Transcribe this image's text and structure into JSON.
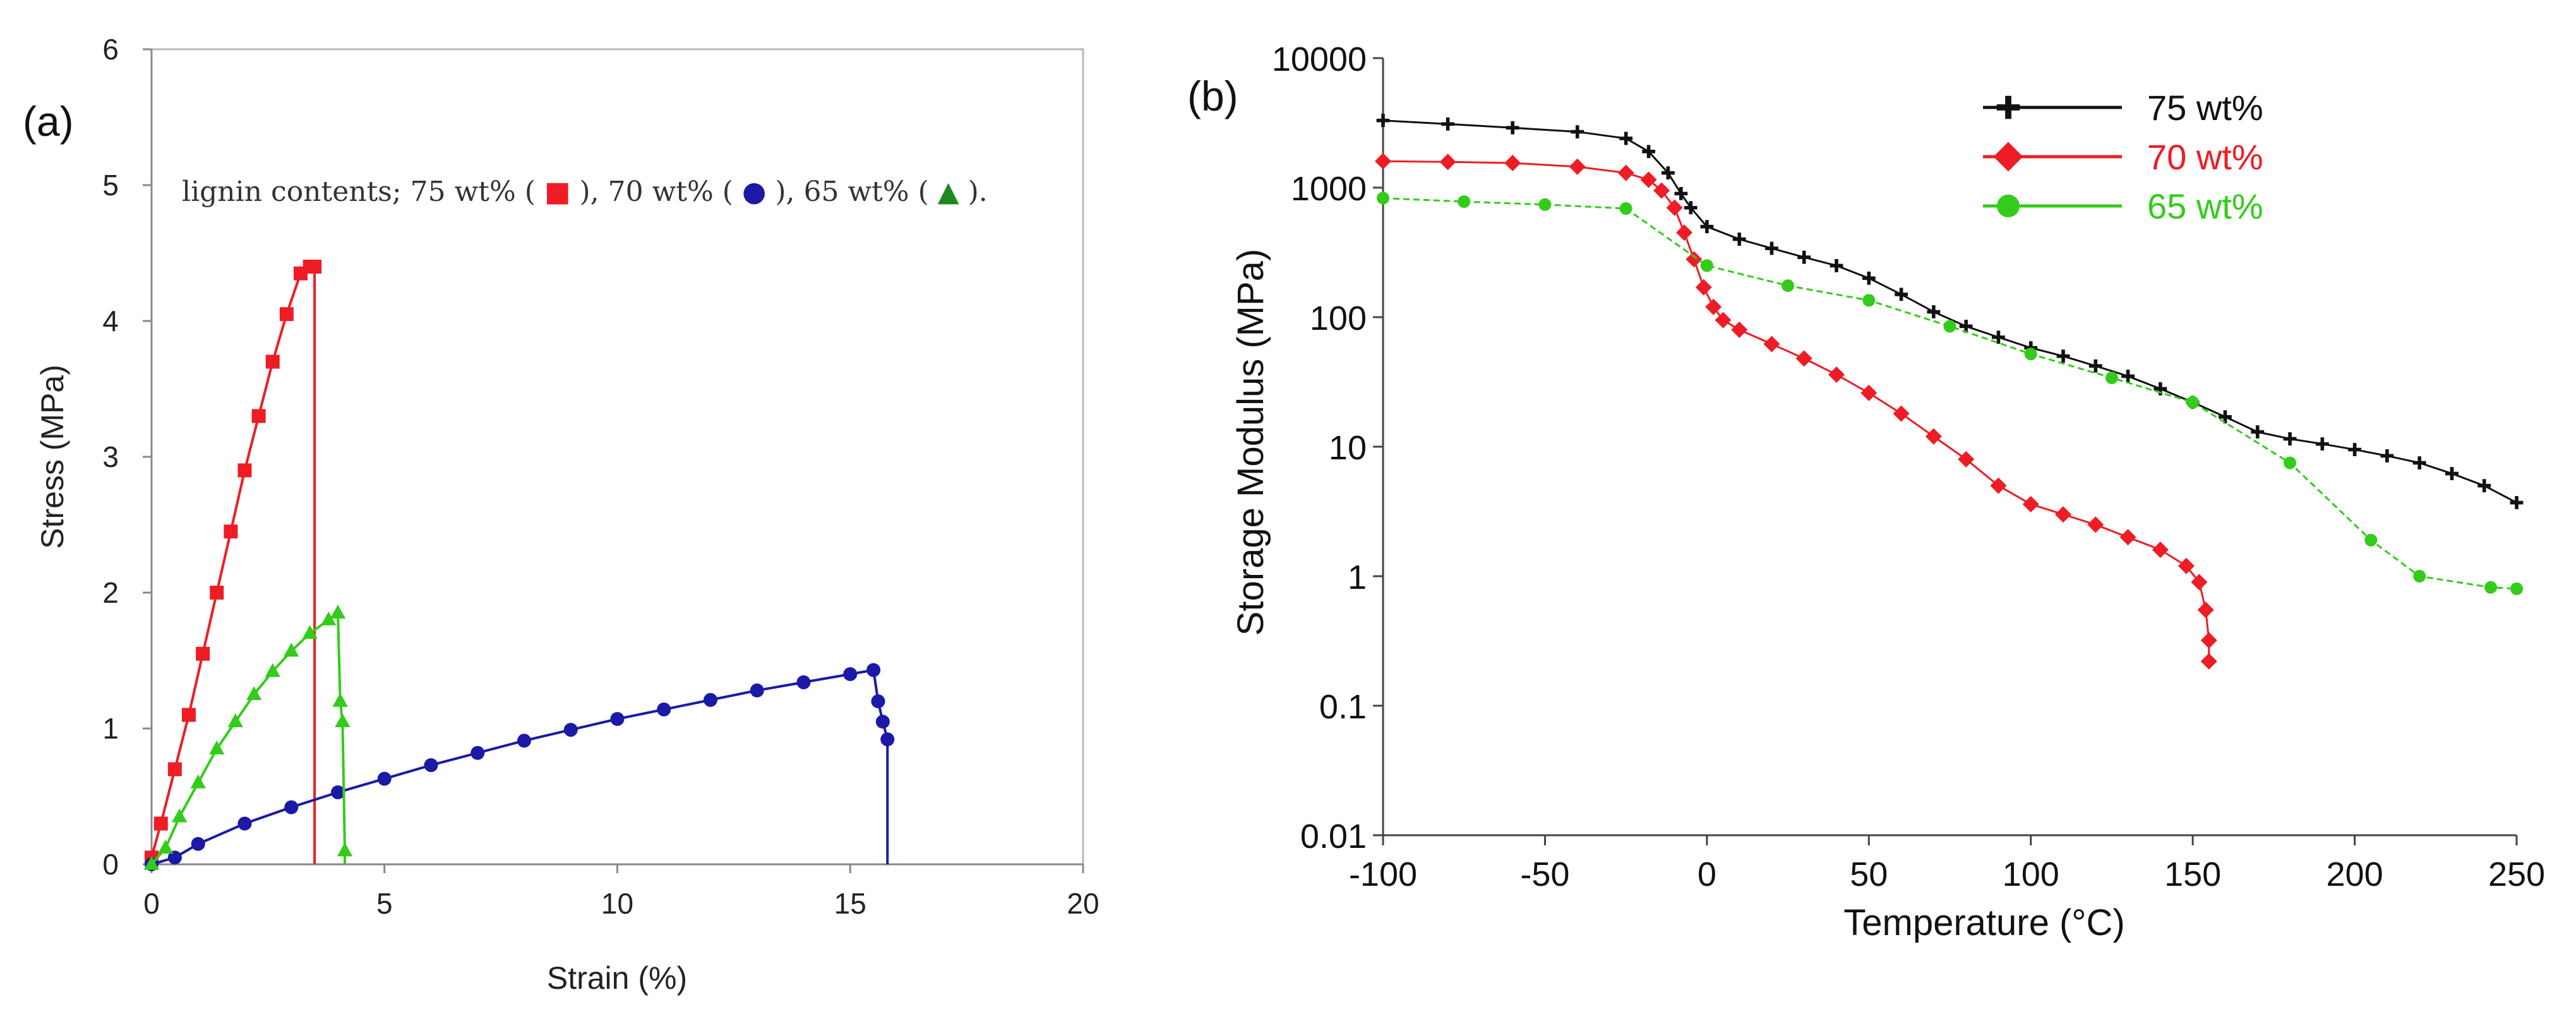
{
  "chart_data": [
    {
      "type": "line",
      "panel_label": "(a)",
      "title": "",
      "xlabel": "Strain (%)",
      "ylabel": "Stress (MPa)",
      "xlim": [
        0,
        20
      ],
      "ylim": [
        0,
        6
      ],
      "xticks": [
        "0",
        "5",
        "10",
        "15",
        "20"
      ],
      "yticks": [
        "0",
        "1",
        "2",
        "3",
        "4",
        "5",
        "6"
      ],
      "legend_text": {
        "prefix": "lignin contents; 75 wt% (",
        "mid1": "), 70 wt% (",
        "mid2": "), 65 wt% (",
        "suffix": ")."
      },
      "series": [
        {
          "name": "75 wt%",
          "color": "#ee1c25",
          "marker": "square",
          "x": [
            0,
            0.2,
            0.5,
            0.8,
            1.1,
            1.4,
            1.7,
            2.0,
            2.3,
            2.6,
            2.9,
            3.2,
            3.4,
            3.5,
            3.5
          ],
          "y": [
            0.05,
            0.3,
            0.7,
            1.1,
            1.55,
            2.0,
            2.45,
            2.9,
            3.3,
            3.7,
            4.05,
            4.35,
            4.4,
            4.4,
            0
          ]
        },
        {
          "name": "70 wt%",
          "color": "#1a1aa6",
          "marker": "circle",
          "x": [
            0,
            0.5,
            1,
            2,
            3,
            4,
            5,
            6,
            7,
            8,
            9,
            10,
            11,
            12,
            13,
            14,
            15,
            15.5,
            15.6,
            15.7,
            15.8,
            15.8
          ],
          "y": [
            0,
            0.05,
            0.15,
            0.3,
            0.42,
            0.53,
            0.63,
            0.73,
            0.82,
            0.91,
            0.99,
            1.07,
            1.14,
            1.21,
            1.28,
            1.34,
            1.4,
            1.43,
            1.2,
            1.05,
            0.92,
            0
          ]
        },
        {
          "name": "65 wt%",
          "color": "#33cc1a",
          "marker": "triangle",
          "x": [
            0,
            0.3,
            0.6,
            1.0,
            1.4,
            1.8,
            2.2,
            2.6,
            3.0,
            3.4,
            3.8,
            4.0,
            4.05,
            4.1,
            4.15,
            4.15
          ],
          "y": [
            0,
            0.12,
            0.35,
            0.6,
            0.85,
            1.05,
            1.25,
            1.42,
            1.57,
            1.7,
            1.8,
            1.85,
            1.2,
            1.05,
            0.1,
            0
          ]
        }
      ]
    },
    {
      "type": "line",
      "panel_label": "(b)",
      "title": "",
      "xlabel": "Temperature (°C)",
      "ylabel": "Storage Modulus (MPa)",
      "xlim": [
        -100,
        250
      ],
      "ylim": [
        0.01,
        10000
      ],
      "yscale": "log",
      "xticks": [
        "-100",
        "-50",
        "0",
        "50",
        "100",
        "150",
        "200",
        "250"
      ],
      "yticks": [
        "0.01",
        "0.1",
        "1",
        "10",
        "100",
        "1000",
        "10000"
      ],
      "legend_position": "top-right",
      "series": [
        {
          "name": "75 wt%",
          "color": "#111111",
          "marker": "cross",
          "x": [
            -100,
            -80,
            -60,
            -40,
            -25,
            -18,
            -12,
            -8,
            -5,
            0,
            10,
            20,
            30,
            40,
            50,
            60,
            70,
            80,
            90,
            100,
            110,
            120,
            130,
            140,
            150,
            160,
            170,
            180,
            190,
            200,
            210,
            220,
            230,
            240,
            250
          ],
          "y": [
            3300,
            3100,
            2900,
            2700,
            2400,
            1900,
            1300,
            900,
            700,
            500,
            400,
            340,
            290,
            250,
            200,
            150,
            110,
            85,
            70,
            58,
            50,
            42,
            35,
            28,
            22,
            17,
            13,
            11.5,
            10.5,
            9.5,
            8.5,
            7.5,
            6.2,
            5,
            3.7
          ]
        },
        {
          "name": "70 wt%",
          "color": "#ee1c25",
          "marker": "diamond",
          "x": [
            -100,
            -80,
            -60,
            -40,
            -25,
            -18,
            -14,
            -10,
            -7,
            -4,
            -1,
            2,
            5,
            10,
            20,
            30,
            40,
            50,
            60,
            70,
            80,
            90,
            100,
            110,
            120,
            130,
            140,
            148,
            152,
            154,
            155,
            155
          ],
          "y": [
            1600,
            1580,
            1550,
            1450,
            1300,
            1150,
            950,
            700,
            450,
            280,
            170,
            120,
            95,
            80,
            62,
            48,
            36,
            26,
            18,
            12,
            8,
            5,
            3.6,
            3,
            2.5,
            2,
            1.6,
            1.2,
            0.9,
            0.55,
            0.32,
            0.22
          ]
        },
        {
          "name": "65 wt%",
          "color": "#33cc1a",
          "marker": "circle",
          "x": [
            -100,
            -75,
            -50,
            -25,
            0,
            25,
            50,
            75,
            100,
            125,
            150,
            180,
            205,
            220,
            242,
            250
          ],
          "y": [
            830,
            780,
            740,
            690,
            250,
            175,
            135,
            85,
            52,
            34,
            22,
            7.5,
            1.9,
            1.0,
            0.82,
            0.8
          ]
        }
      ]
    }
  ]
}
